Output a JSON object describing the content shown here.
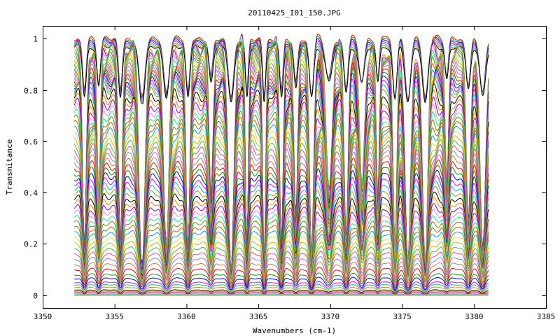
{
  "chart_data": {
    "type": "line",
    "title": "20110425_I01_150.JPG",
    "xlabel": "Wavenumbers (cm-1)",
    "ylabel": "Transmitance",
    "xlim": [
      3350,
      3385
    ],
    "ylim": [
      -0.05,
      1.05
    ],
    "x_ticks": [
      3350,
      3355,
      3360,
      3365,
      3370,
      3375,
      3380,
      3385
    ],
    "x_tick_labels": [
      "3350",
      "3355",
      "3360",
      "3365",
      "3370",
      "3375",
      "3380",
      "3385"
    ],
    "y_ticks": [
      0,
      0.2,
      0.4,
      0.6,
      0.8,
      1
    ],
    "y_tick_labels": [
      "0",
      "0.2",
      "0.4",
      "0.6",
      "0.8",
      "1"
    ],
    "grid": false,
    "legend": "none",
    "x_range_of_data": [
      3352.2,
      3381.0
    ],
    "absorption_line_positions": [
      3352.9,
      3353.9,
      3355.4,
      3356.9,
      3358.6,
      3360.1,
      3361.7,
      3363.1,
      3364.2,
      3365.4,
      3366.6,
      3367.6,
      3368.7,
      3369.9,
      3371.1,
      3372.2,
      3373.3,
      3374.5,
      3375.4,
      3376.6,
      3378.1,
      3379.6,
      3380.6
    ],
    "series_baseline_levels": [
      1.0,
      0.995,
      0.99,
      0.985,
      0.98,
      0.975,
      0.97,
      0.965,
      0.96,
      0.955,
      0.95,
      0.94,
      0.93,
      0.92,
      0.91,
      0.9,
      0.89,
      0.88,
      0.87,
      0.86,
      0.85,
      0.84,
      0.83,
      0.82,
      0.81,
      0.8,
      0.78,
      0.76,
      0.74,
      0.72,
      0.7,
      0.68,
      0.66,
      0.64,
      0.62,
      0.6,
      0.58,
      0.56,
      0.54,
      0.52,
      0.5,
      0.48,
      0.46,
      0.44,
      0.42,
      0.4,
      0.38,
      0.36,
      0.34,
      0.32,
      0.3,
      0.28,
      0.26,
      0.24,
      0.22,
      0.2,
      0.18,
      0.16,
      0.14,
      0.12,
      0.1,
      0.08,
      0.065,
      0.05,
      0.04,
      0.03,
      0.02,
      0.015,
      0.01,
      0.005,
      0.002,
      0.0
    ],
    "series_colors": [
      "#ff0000",
      "#00a000",
      "#0000ff",
      "#ff00ff",
      "#00c0c0",
      "#a0a000",
      "#000000",
      "#ff8000",
      "#8000ff",
      "#ff80c0",
      "#00ff80",
      "#808000",
      "#c06000",
      "#00a0ff",
      "#ffd040",
      "#c0c000",
      "#40c040",
      "#ff4080",
      "#8080ff",
      "#c08040"
    ]
  }
}
